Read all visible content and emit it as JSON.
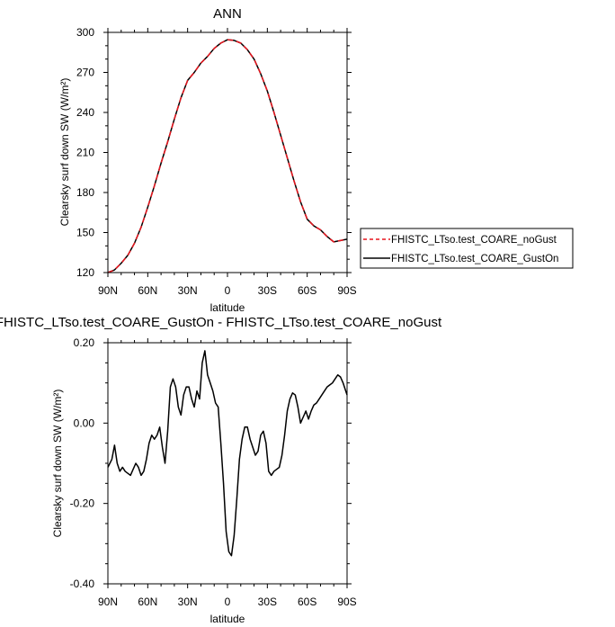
{
  "chart_data": [
    {
      "type": "line",
      "title": "ANN",
      "xlabel": "latitude",
      "ylabel": "Clearsky surf down SW (W/m²)",
      "xlim": [
        -90,
        90
      ],
      "ylim": [
        120,
        300
      ],
      "x_ticks": [
        -90,
        -60,
        -30,
        0,
        30,
        60,
        90
      ],
      "x_tick_labels": [
        "90N",
        "60N",
        "30N",
        "0",
        "30S",
        "60S",
        "90S"
      ],
      "y_ticks": [
        120,
        150,
        180,
        210,
        240,
        270,
        300
      ],
      "y_tick_labels": [
        "120",
        "150",
        "180",
        "210",
        "240",
        "270",
        "300"
      ],
      "legend_position": "right",
      "x": [
        -90,
        -85,
        -80,
        -75,
        -70,
        -65,
        -60,
        -55,
        -50,
        -45,
        -40,
        -35,
        -30,
        -25,
        -20,
        -15,
        -10,
        -5,
        0,
        5,
        10,
        15,
        20,
        25,
        30,
        35,
        40,
        45,
        50,
        55,
        60,
        65,
        70,
        75,
        80,
        85,
        90
      ],
      "series": [
        {
          "name": "FHISTC_LTso.test_COARE_noGust",
          "color": "#e8141c",
          "dash": "dashed",
          "values": [
            120,
            122,
            127,
            133,
            142,
            154,
            169,
            185,
            202,
            218,
            235,
            251,
            264,
            270,
            277,
            282,
            288,
            292,
            294.5,
            294,
            292,
            287,
            280,
            269,
            256,
            240,
            223,
            206,
            189,
            173,
            160,
            155,
            152,
            147,
            143,
            144,
            145
          ]
        },
        {
          "name": "FHISTC_LTso.test_COARE_GustOn",
          "color": "#000000",
          "dash": "solid",
          "values": [
            120,
            122,
            127,
            133,
            142,
            154,
            169,
            185,
            202,
            218,
            235,
            251,
            264,
            270,
            277,
            282,
            288,
            292,
            294.5,
            294,
            292,
            287,
            280,
            269,
            256,
            240,
            223,
            206,
            189,
            173,
            160,
            155,
            152,
            147,
            143,
            144,
            145
          ]
        }
      ]
    },
    {
      "type": "line",
      "title": "FHISTC_LTso.test_COARE_GustOn - FHISTC_LTso.test_COARE_noGust",
      "xlabel": "latitude",
      "ylabel": "Clearsky surf down SW (W/m²)",
      "xlim": [
        -90,
        90
      ],
      "ylim": [
        -0.4,
        0.2
      ],
      "x_ticks": [
        -90,
        -60,
        -30,
        0,
        30,
        60,
        90
      ],
      "x_tick_labels": [
        "90N",
        "60N",
        "30N",
        "0",
        "30S",
        "60S",
        "90S"
      ],
      "y_ticks": [
        -0.4,
        -0.2,
        0.0,
        0.2
      ],
      "y_tick_labels": [
        "-0.40",
        "-0.20",
        "0.00",
        "0.20"
      ],
      "series": [
        {
          "color": "#000000",
          "x": [
            -90,
            -87,
            -85,
            -83,
            -81,
            -79,
            -77,
            -75,
            -73,
            -71,
            -69,
            -67,
            -65,
            -63,
            -61,
            -59,
            -57,
            -55,
            -53,
            -51,
            -49,
            -47,
            -45,
            -43,
            -41,
            -39,
            -37,
            -35,
            -33,
            -31,
            -29,
            -27,
            -25,
            -23,
            -21,
            -19,
            -17,
            -15,
            -13,
            -11,
            -9,
            -7,
            -5,
            -3,
            -1,
            1,
            3,
            5,
            7,
            9,
            11,
            13,
            15,
            17,
            19,
            21,
            23,
            25,
            27,
            29,
            31,
            33,
            35,
            37,
            39,
            41,
            43,
            45,
            47,
            49,
            51,
            53,
            55,
            57,
            59,
            61,
            63,
            65,
            67,
            69,
            71,
            73,
            75,
            77,
            79,
            81,
            83,
            85,
            87,
            89,
            90
          ],
          "values": [
            -0.11,
            -0.09,
            -0.055,
            -0.1,
            -0.12,
            -0.11,
            -0.12,
            -0.125,
            -0.13,
            -0.115,
            -0.1,
            -0.11,
            -0.13,
            -0.12,
            -0.09,
            -0.05,
            -0.03,
            -0.04,
            -0.03,
            -0.01,
            -0.06,
            -0.1,
            -0.02,
            0.09,
            0.11,
            0.09,
            0.04,
            0.02,
            0.07,
            0.09,
            0.09,
            0.06,
            0.04,
            0.08,
            0.06,
            0.15,
            0.18,
            0.12,
            0.1,
            0.08,
            0.05,
            0.04,
            -0.05,
            -0.15,
            -0.27,
            -0.32,
            -0.33,
            -0.28,
            -0.19,
            -0.09,
            -0.04,
            -0.01,
            -0.01,
            -0.04,
            -0.06,
            -0.08,
            -0.07,
            -0.03,
            -0.02,
            -0.05,
            -0.12,
            -0.13,
            -0.12,
            -0.115,
            -0.11,
            -0.08,
            -0.03,
            0.03,
            0.06,
            0.075,
            0.07,
            0.04,
            0.0,
            0.015,
            0.03,
            0.01,
            0.03,
            0.045,
            0.05,
            0.06,
            0.07,
            0.08,
            0.09,
            0.095,
            0.1,
            0.11,
            0.12,
            0.115,
            0.1,
            0.08,
            0.07
          ]
        }
      ]
    }
  ]
}
